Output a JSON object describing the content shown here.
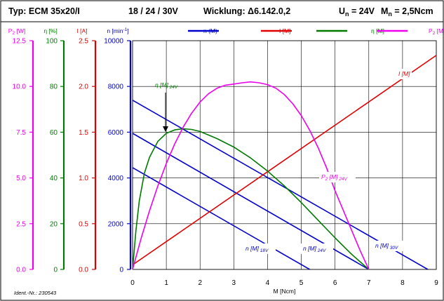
{
  "header": {
    "type_label": "Typ: ECM 35x20/I",
    "voltages": "18 / 24 / 30V",
    "winding": "Wicklung: Δ6.142.0,2",
    "un_label": "U",
    "un_sub": "n",
    "un_value": " = 24V",
    "mn_label": "M",
    "mn_sub": "n",
    "mn_value": " = 2,5Ncm"
  },
  "legend": [
    {
      "label": "n (M)",
      "color": "#0000cc"
    },
    {
      "label": "I [M]",
      "color": "#e00000"
    },
    {
      "label": "η [M]",
      "color": "#007a00"
    },
    {
      "label": "P",
      "sub": "2",
      "suffix": " [M]",
      "color": "#ee00ee"
    }
  ],
  "ident": "Ident.-Nr.: 230543",
  "chart_data": {
    "type": "line",
    "xlabel": "M [Ncm]",
    "xlim": [
      0,
      9
    ],
    "x_ticks": [
      "0",
      "1",
      "2",
      "3",
      "4",
      "5",
      "6",
      "7",
      "8",
      "9"
    ],
    "axes": [
      {
        "id": "p2",
        "title": "P",
        "title_sub": "2",
        "title_suffix": " [W]",
        "color": "#ee00ee",
        "ylim": [
          0,
          12.5
        ],
        "ticks": [
          "0.0",
          "2.5",
          "5.0",
          "7.5",
          "10.0",
          "12.5"
        ]
      },
      {
        "id": "eta",
        "title": "η [%]",
        "color": "#007a00",
        "ylim": [
          0,
          100
        ],
        "ticks": [
          "0",
          "20",
          "40",
          "60",
          "80",
          "100"
        ]
      },
      {
        "id": "current",
        "title": "I [A]",
        "color": "#e00000",
        "ylim": [
          0,
          2.5
        ],
        "ticks": [
          "0.0",
          "0.5",
          "1.0",
          "1.5",
          "2.0",
          "2.5"
        ]
      },
      {
        "id": "speed",
        "title": "n [min",
        "title_sup": "-1",
        "title_suffix": "]",
        "color": "#0000cc",
        "ylim": [
          0,
          10000
        ],
        "ticks": [
          "0",
          "2000",
          "4000",
          "6000",
          "8000",
          "10000"
        ]
      }
    ],
    "series": [
      {
        "id": "n18",
        "axis": "speed",
        "color": "#0000cc",
        "label": "n [M]",
        "label_sub": "18V",
        "x": [
          0,
          5.25
        ],
        "y": [
          4450,
          0
        ]
      },
      {
        "id": "n24",
        "axis": "speed",
        "color": "#0000cc",
        "label": "n [M]",
        "label_sub": "24V",
        "x": [
          0,
          7.0
        ],
        "y": [
          5950,
          0
        ]
      },
      {
        "id": "n30",
        "axis": "speed",
        "color": "#0000cc",
        "label": "n [M]",
        "label_sub": "30V",
        "x": [
          0,
          8.75
        ],
        "y": [
          7400,
          0
        ]
      },
      {
        "id": "current",
        "axis": "current",
        "color": "#e00000",
        "label": "I [M]",
        "x": [
          0,
          9
        ],
        "y": [
          0.05,
          2.34
        ]
      },
      {
        "id": "eta24",
        "axis": "eta",
        "color": "#007a00",
        "label": "η [M]",
        "label_sub": "24V",
        "x": [
          0,
          0.1,
          0.2,
          0.35,
          0.5,
          0.75,
          1.0,
          1.25,
          1.5,
          1.75,
          2.0,
          2.5,
          3.0,
          3.5,
          4.0,
          4.5,
          5.0,
          5.5,
          6.0,
          6.5,
          7.0
        ],
        "y": [
          0,
          17,
          30,
          42,
          49,
          56,
          59.5,
          61,
          61.5,
          61.2,
          60.3,
          57.2,
          53.5,
          48.7,
          43,
          36.5,
          29.2,
          21.5,
          13.8,
          6.5,
          0
        ]
      },
      {
        "id": "p2_24",
        "axis": "p2",
        "color": "#ee00ee",
        "label": "P",
        "label_sub": "2",
        "label_suffix": " [M]",
        "label_sub2": "24V",
        "x": [
          0,
          0.25,
          0.5,
          0.75,
          1.0,
          1.25,
          1.5,
          1.75,
          2.0,
          2.25,
          2.5,
          2.75,
          3.0,
          3.25,
          3.5,
          3.75,
          4.0,
          4.25,
          4.5,
          4.75,
          5.0,
          5.25,
          5.5,
          5.75,
          6.0,
          6.25,
          6.5,
          6.75,
          7.0
        ],
        "y": [
          0,
          1.67,
          3.2,
          4.57,
          5.79,
          6.86,
          7.78,
          8.54,
          9.15,
          9.6,
          9.9,
          10.07,
          10.13,
          10.2,
          10.25,
          10.2,
          10.1,
          9.9,
          9.55,
          9.05,
          8.4,
          7.6,
          6.65,
          5.55,
          4.3,
          3.2,
          2.1,
          1.0,
          0
        ]
      }
    ]
  }
}
